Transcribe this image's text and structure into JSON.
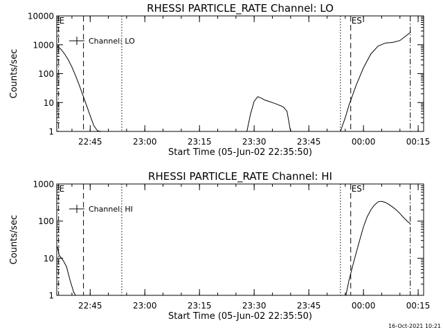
{
  "chart_data": [
    {
      "type": "line",
      "title": "RHESSI PARTICLE_RATE Channel: LO",
      "xlabel": "Start Time (05-Jun-02 22:35:50)",
      "ylabel": "Counts/sec",
      "y_scale": "log",
      "ylim": [
        1,
        10000
      ],
      "yticks": [
        1,
        10,
        100,
        1000,
        10000
      ],
      "ytick_labels": [
        "1",
        "10",
        "100",
        "1000",
        "10000"
      ],
      "xlim": [
        "22:35:50",
        "00:16:30"
      ],
      "xticks": [
        "22:45",
        "23:00",
        "23:15",
        "23:30",
        "23:45",
        "00:00",
        "00:15"
      ],
      "grid": false,
      "legend": {
        "position": "top-left",
        "entries": [
          "Channel: LO"
        ]
      },
      "series": [
        {
          "name": "Channel: LO",
          "x": [
            "22:36:00",
            "22:37:00",
            "22:38:00",
            "22:39:00",
            "22:40:00",
            "22:41:00",
            "22:42:00",
            "22:43:00",
            "22:44:00",
            "22:45:00",
            "22:46:00",
            "22:47:00",
            "22:48:00"
          ],
          "y": [
            900,
            700,
            480,
            300,
            170,
            85,
            40,
            18,
            8,
            3.5,
            1.6,
            1.05,
            1
          ],
          "segment": 1
        },
        {
          "name": "Channel: LO",
          "x": [
            "23:28:00",
            "23:29:00",
            "23:30:00",
            "23:31:00",
            "23:32:00",
            "23:33:00",
            "23:34:00",
            "23:35:00",
            "23:36:00",
            "23:37:00",
            "23:38:00",
            "23:39:00",
            "23:40:00"
          ],
          "y": [
            1,
            4,
            11,
            16,
            14,
            12,
            11,
            10,
            9,
            8,
            7,
            5,
            1
          ],
          "segment": 2
        },
        {
          "name": "Channel: LO",
          "x": [
            "23:53:40",
            "23:55:00",
            "23:56:00",
            "23:58:00",
            "00:00:00",
            "00:02:00",
            "00:04:00",
            "00:06:00",
            "00:08:00",
            "00:10:00",
            "00:12:00",
            "00:13:00"
          ],
          "y": [
            1,
            3,
            8,
            40,
            160,
            480,
            900,
            1150,
            1200,
            1400,
            2200,
            2800
          ],
          "segment": 3
        }
      ],
      "markers": [
        {
          "time": "22:36:20",
          "style": "dash-dot",
          "label": "E"
        },
        {
          "time": "22:43:10",
          "style": "dashed",
          "label": ""
        },
        {
          "time": "22:53:40",
          "style": "dotted",
          "label": ""
        },
        {
          "time": "23:53:40",
          "style": "dotted",
          "label": ""
        },
        {
          "time": "23:56:30",
          "style": "dashed",
          "label": "ES"
        },
        {
          "time": "00:12:50",
          "style": "dash-dot",
          "label": ""
        }
      ]
    },
    {
      "type": "line",
      "title": "RHESSI PARTICLE_RATE Channel: HI",
      "xlabel": "Start Time (05-Jun-02 22:35:50)",
      "ylabel": "Counts/sec",
      "y_scale": "log",
      "ylim": [
        1,
        1000
      ],
      "yticks": [
        1,
        10,
        100,
        1000
      ],
      "ytick_labels": [
        "1",
        "10",
        "100",
        "1000"
      ],
      "xlim": [
        "22:35:50",
        "00:16:30"
      ],
      "xticks": [
        "22:45",
        "23:00",
        "23:15",
        "23:30",
        "23:45",
        "00:00",
        "00:15"
      ],
      "grid": false,
      "legend": {
        "position": "top-left",
        "entries": [
          "Channel: HI"
        ]
      },
      "series": [
        {
          "name": "Channel: HI",
          "x": [
            "22:35:50",
            "22:36:30",
            "22:37:30",
            "22:38:30",
            "22:39:30",
            "22:40:30",
            "22:41:00"
          ],
          "y": [
            20,
            12,
            9,
            6,
            2.5,
            1.2,
            1
          ],
          "segment": 1
        },
        {
          "name": "Channel: HI",
          "x": [
            "23:55:10",
            "23:56:00",
            "23:57:00",
            "23:58:00",
            "23:59:00",
            "00:00:00",
            "00:01:00",
            "00:02:00",
            "00:03:00",
            "00:04:00",
            "00:05:00",
            "00:06:00",
            "00:07:00",
            "00:08:00",
            "00:09:00",
            "00:10:00",
            "00:11:00",
            "00:12:00",
            "00:12:50"
          ],
          "y": [
            1,
            2.5,
            6,
            14,
            32,
            70,
            130,
            200,
            270,
            330,
            340,
            320,
            280,
            240,
            200,
            160,
            125,
            100,
            85
          ],
          "segment": 2
        }
      ],
      "markers": [
        {
          "time": "22:36:20",
          "style": "dash-dot",
          "label": "E"
        },
        {
          "time": "22:43:10",
          "style": "dashed",
          "label": ""
        },
        {
          "time": "22:53:40",
          "style": "dotted",
          "label": ""
        },
        {
          "time": "23:53:40",
          "style": "dotted",
          "label": ""
        },
        {
          "time": "23:56:30",
          "style": "dashed",
          "label": "ES"
        },
        {
          "time": "00:12:50",
          "style": "dash-dot",
          "label": ""
        }
      ]
    }
  ],
  "timestamp": "16-Oct-2021 10:21"
}
